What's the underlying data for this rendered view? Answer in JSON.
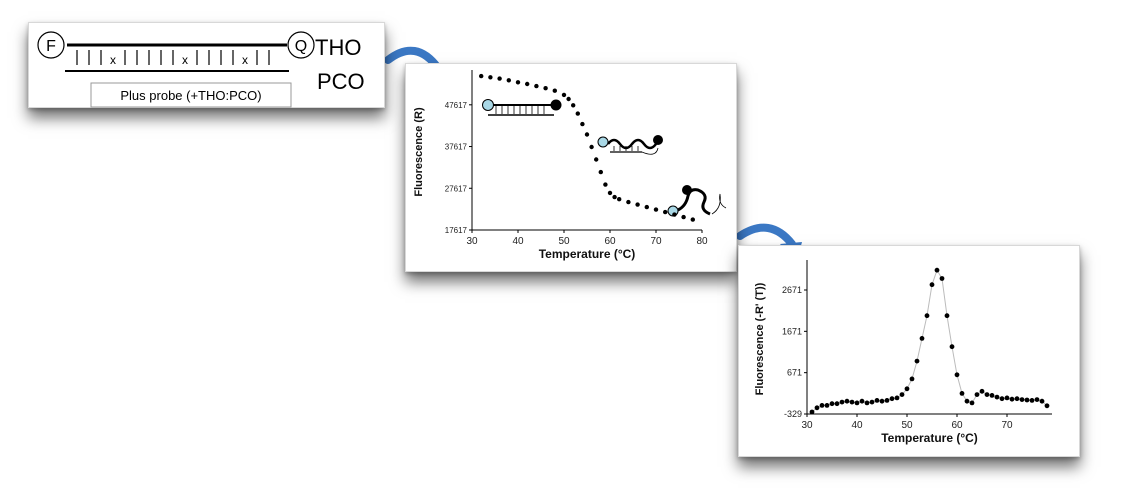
{
  "probe": {
    "fluor_label": "F",
    "quench_label": "Q",
    "side_label_1": "THO",
    "side_label_2": "PCO",
    "mismatch_marks": [
      "x",
      "x",
      "x"
    ],
    "caption": "Plus probe (+THO:PCO)"
  },
  "colors": {
    "arrow": "#3b78c4",
    "fluorophore": "#a9d8e6",
    "markers": "#000000",
    "deriv_line": "#bbbbbb"
  },
  "chart_data": [
    {
      "type": "scatter",
      "title": "",
      "xlabel": "Temperature (°C)",
      "ylabel": "Fluorescence (R)",
      "xlim": [
        30,
        80
      ],
      "ylim": [
        17617,
        55000
      ],
      "xticks": [
        "30",
        "40",
        "50",
        "60",
        "70",
        "80"
      ],
      "yticks": [
        "17617",
        "27617",
        "37617",
        "47617"
      ],
      "grid": false,
      "x": [
        32,
        34,
        36,
        38,
        40,
        42,
        44,
        46,
        48,
        50,
        51,
        52,
        53,
        54,
        55,
        56,
        57,
        58,
        59,
        60,
        61,
        62,
        64,
        66,
        68,
        70,
        72,
        74,
        76,
        78
      ],
      "y": [
        54500,
        54200,
        53900,
        53500,
        53000,
        52600,
        52100,
        51600,
        51000,
        50000,
        49000,
        47500,
        45500,
        43000,
        40500,
        37500,
        34500,
        31500,
        28500,
        26500,
        25500,
        25000,
        24300,
        23700,
        23100,
        22500,
        21900,
        21300,
        20700,
        20100
      ]
    },
    {
      "type": "line",
      "title": "",
      "xlabel": "Temperature (°C)",
      "ylabel": "Fluorescence (-R' (T))",
      "xlim": [
        30,
        79
      ],
      "ylim": [
        -329,
        3300
      ],
      "xticks": [
        "30",
        "40",
        "50",
        "60",
        "70"
      ],
      "yticks": [
        "-329",
        "671",
        "1671",
        "2671"
      ],
      "grid": false,
      "x": [
        31,
        32,
        33,
        34,
        35,
        36,
        37,
        38,
        39,
        40,
        41,
        42,
        43,
        44,
        45,
        46,
        47,
        48,
        49,
        50,
        51,
        52,
        53,
        54,
        55,
        56,
        57,
        58,
        59,
        60,
        61,
        62,
        63,
        64,
        65,
        66,
        67,
        68,
        69,
        70,
        71,
        72,
        73,
        74,
        75,
        76,
        77,
        78
      ],
      "y": [
        -280,
        -180,
        -120,
        -120,
        -80,
        -80,
        -40,
        -20,
        -40,
        -60,
        -20,
        -60,
        -40,
        0,
        -20,
        0,
        40,
        60,
        140,
        280,
        520,
        950,
        1500,
        2050,
        2800,
        3150,
        2950,
        2050,
        1300,
        620,
        170,
        -20,
        -60,
        140,
        220,
        140,
        120,
        80,
        40,
        60,
        30,
        40,
        20,
        10,
        0,
        20,
        -20,
        -130
      ]
    }
  ]
}
